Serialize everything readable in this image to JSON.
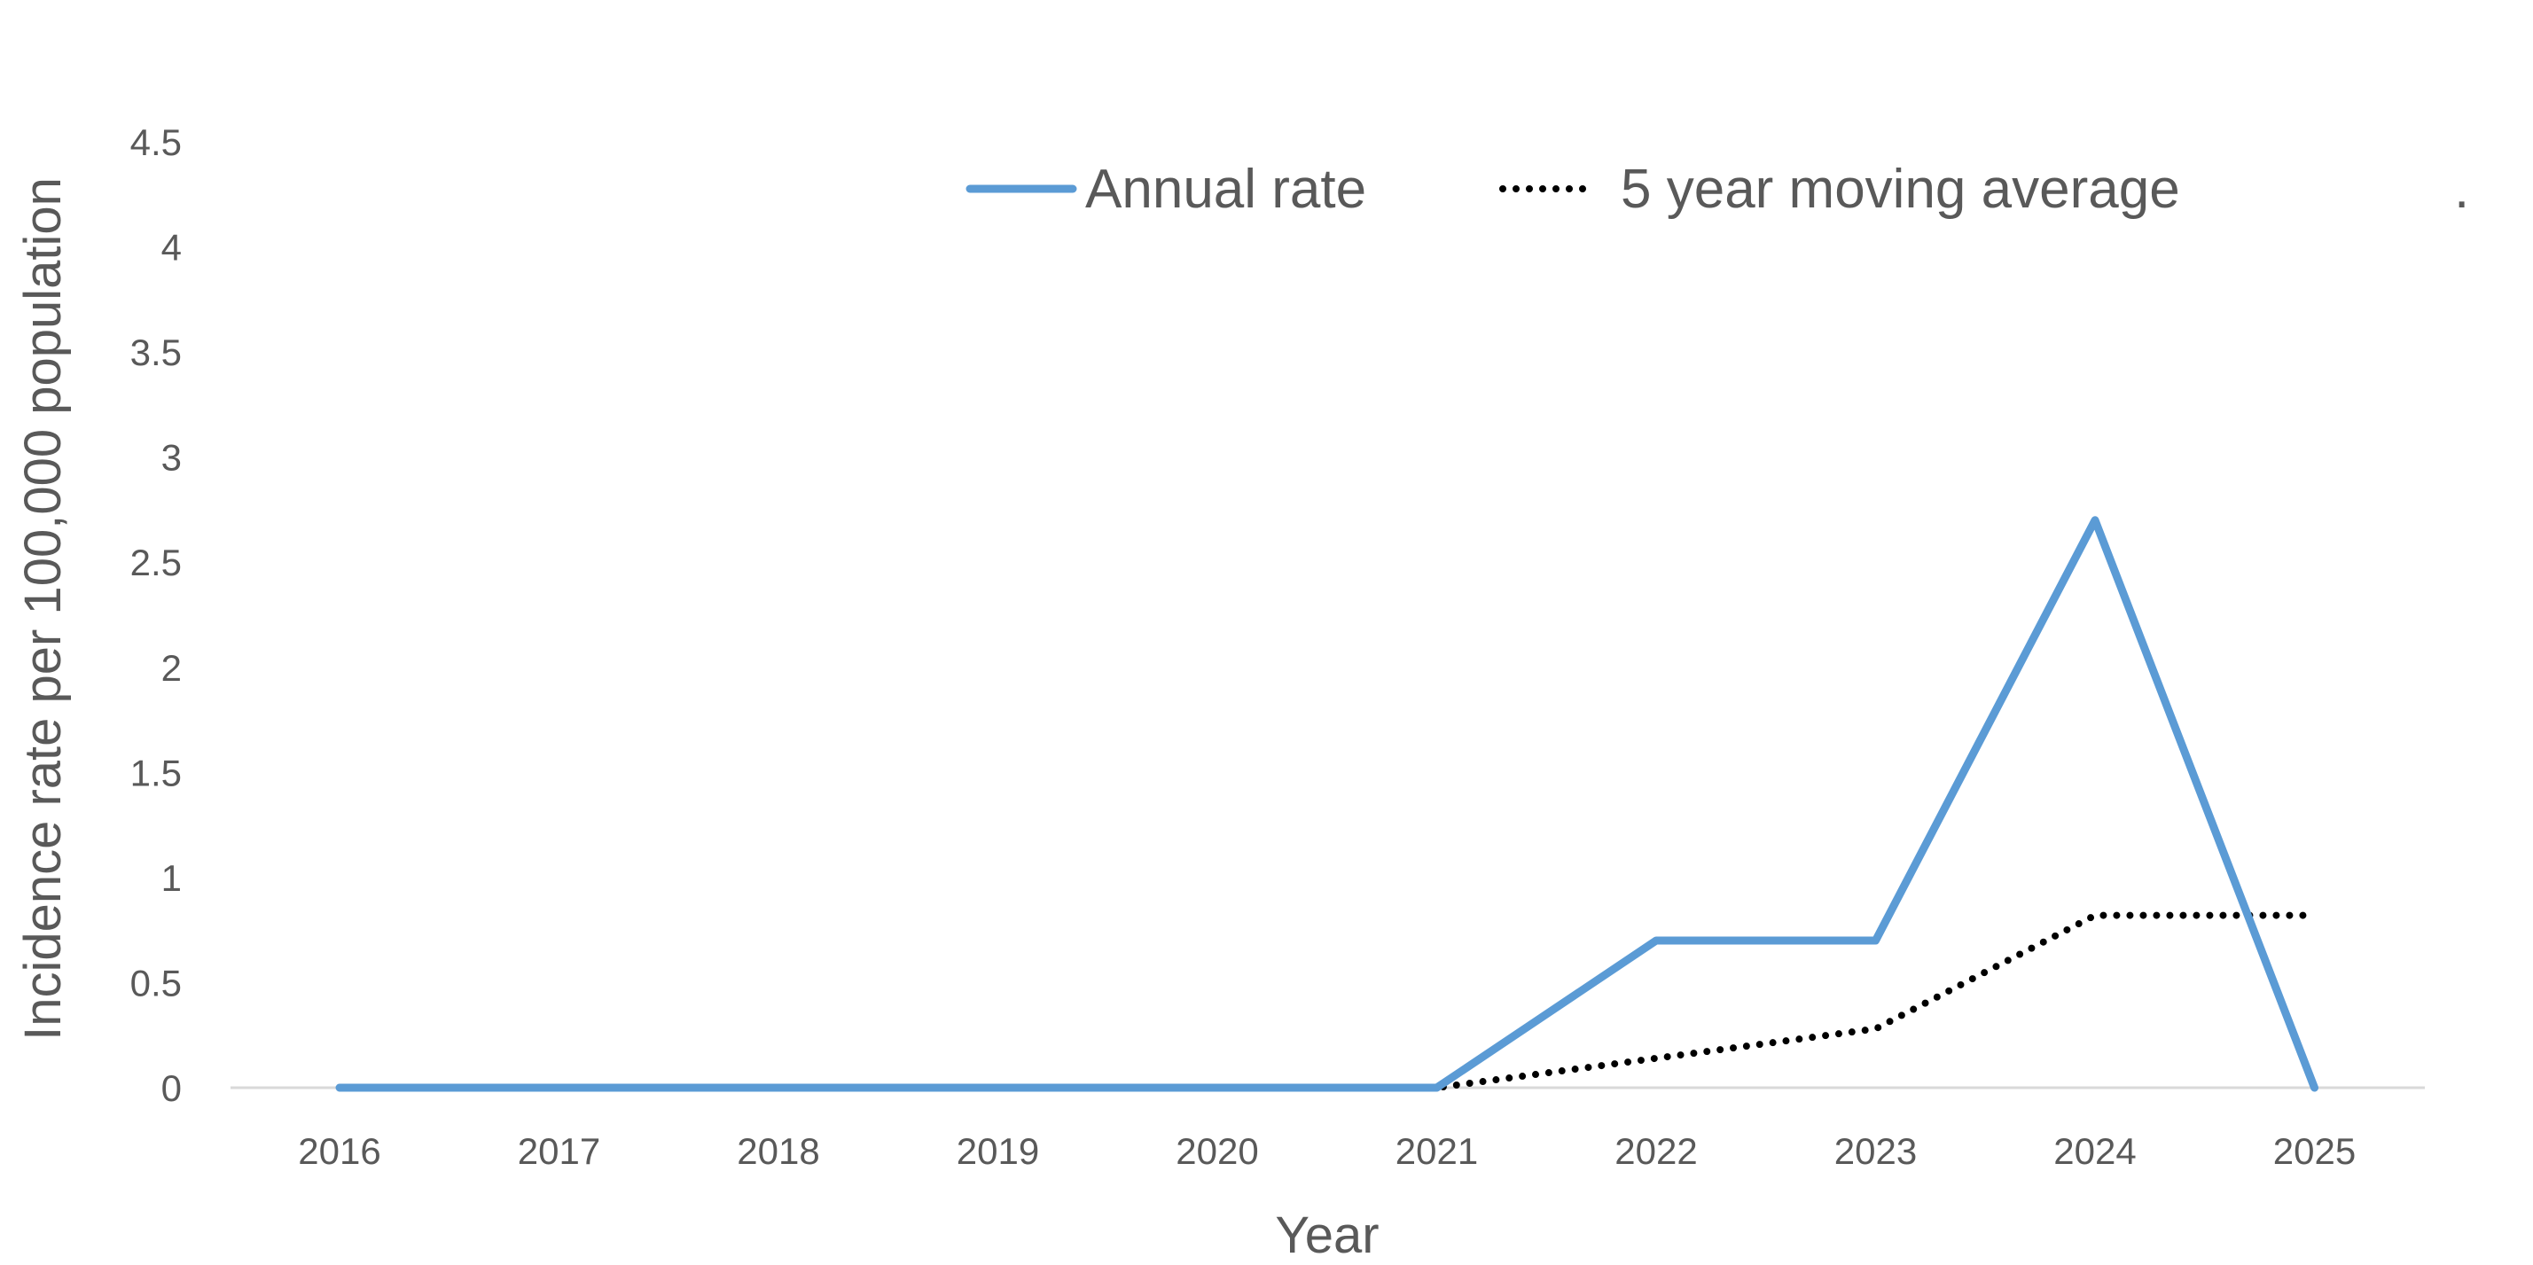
{
  "chart_data": {
    "type": "line",
    "xlabel": "Year",
    "ylabel": "Incidence rate per 100,000 population",
    "ylim": [
      0,
      4.5
    ],
    "y_ticks": [
      "0",
      "0.5",
      "1",
      "1.5",
      "2",
      "2.5",
      "3",
      "3.5",
      "4",
      "4.5"
    ],
    "categories": [
      "2016",
      "2017",
      "2018",
      "2019",
      "2020",
      "2021",
      "2022",
      "2023",
      "2024",
      "2025"
    ],
    "grid": false,
    "legend_position": "top-right",
    "series": [
      {
        "name": "Annual rate",
        "color": "#5B9BD5",
        "style": "solid",
        "values": [
          0,
          0,
          0,
          0,
          0,
          0,
          0.7,
          0.7,
          2.7,
          0
        ]
      },
      {
        "name": "5 year moving average",
        "color": "#000000",
        "style": "dotted",
        "values": [
          null,
          null,
          null,
          null,
          0,
          0,
          0.14,
          0.28,
          0.82,
          0.82
        ]
      }
    ],
    "annotation": "."
  }
}
